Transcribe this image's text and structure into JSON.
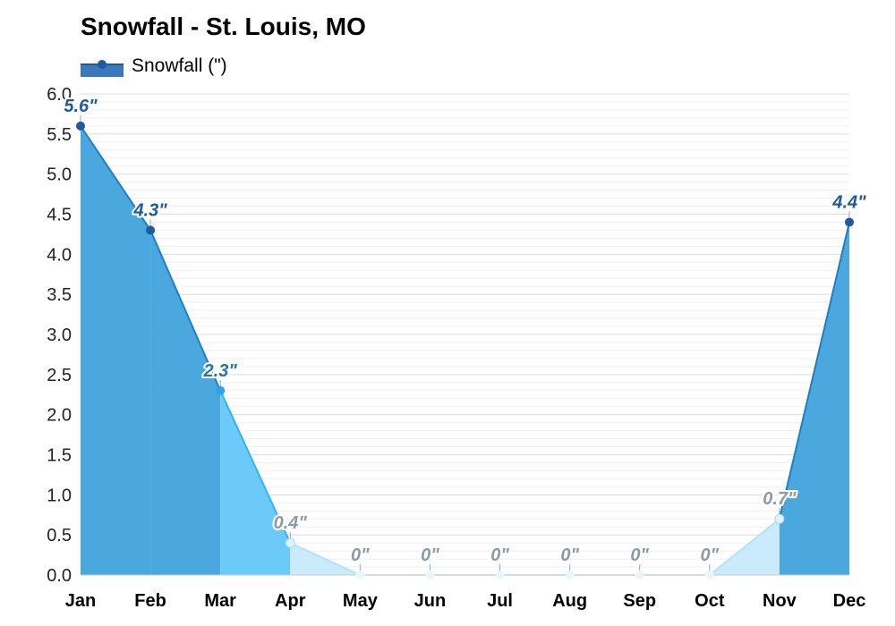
{
  "chart_data": {
    "type": "area",
    "title": "Snowfall - St. Louis, MO",
    "categories": [
      "Jan",
      "Feb",
      "Mar",
      "Apr",
      "May",
      "Jun",
      "Jul",
      "Aug",
      "Sep",
      "Oct",
      "Nov",
      "Dec"
    ],
    "series": [
      {
        "name": "Snowfall (\")",
        "values": [
          5.6,
          4.3,
          2.3,
          0.4,
          0,
          0,
          0,
          0,
          0,
          0,
          0.7,
          4.4
        ],
        "data_labels": [
          "5.6\"",
          "4.3\"",
          "2.3\"",
          "0.4\"",
          "0\"",
          "0\"",
          "0\"",
          "0\"",
          "0\"",
          "0\"",
          "0.7\"",
          "4.4\""
        ]
      }
    ],
    "yticks": [
      "0.0",
      "0.5",
      "1.0",
      "1.5",
      "2.0",
      "2.5",
      "3.0",
      "3.5",
      "4.0",
      "4.5",
      "5.0",
      "5.5",
      "6.0"
    ],
    "ylim": [
      0,
      6
    ],
    "grid": true,
    "legend": "top-left",
    "colors": {
      "high": "#4aa8de",
      "mid": "#6ccaf8",
      "low": "#c9ebfc",
      "trace": "#e6f5fd",
      "label_dark": "#1d5b9e",
      "label_mid": "#2a73b0",
      "label_grey": "#8c9aa6"
    }
  }
}
